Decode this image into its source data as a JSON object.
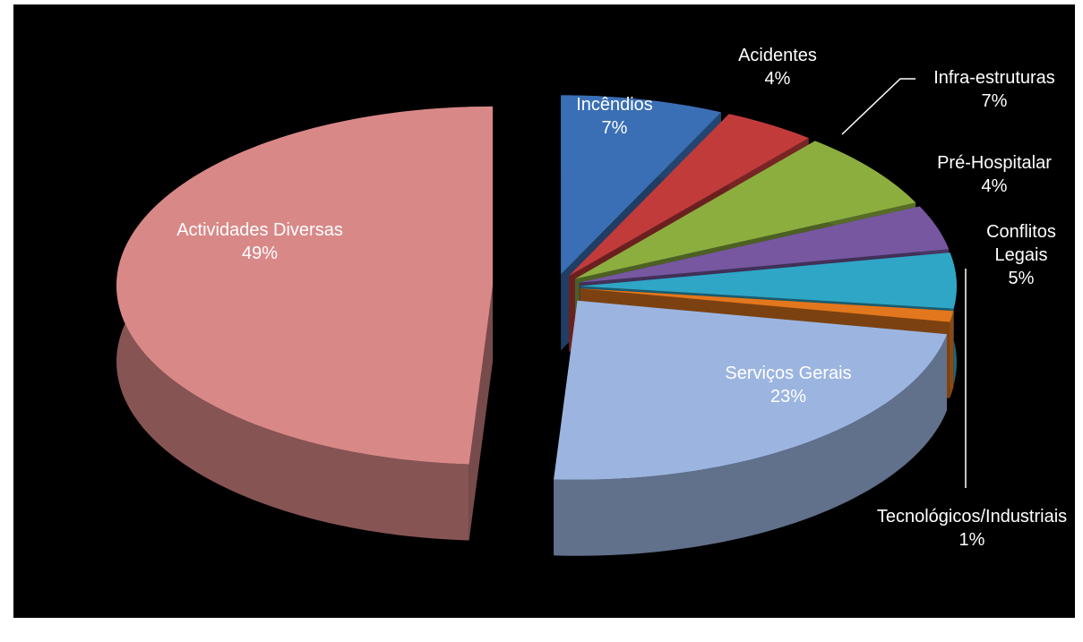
{
  "chart_data": {
    "type": "pie",
    "categories": [
      "Incêndios",
      "Acidentes",
      "Infra-estruturas",
      "Pré-Hospitalar",
      "Conflitos Legais",
      "Tecnológicos/Industriais",
      "Serviços Gerais",
      "Actividades Diversas"
    ],
    "values": [
      7,
      4,
      7,
      4,
      5,
      1,
      23,
      49
    ],
    "value_labels": [
      "7%",
      "4%",
      "7%",
      "4%",
      "5%",
      "1%",
      "23%",
      "49%"
    ],
    "colors": [
      "#3a6fb5",
      "#c23b3b",
      "#8cae3f",
      "#7657a0",
      "#2fa6c6",
      "#e2771d",
      "#9cb5e0",
      "#d98888"
    ]
  }
}
